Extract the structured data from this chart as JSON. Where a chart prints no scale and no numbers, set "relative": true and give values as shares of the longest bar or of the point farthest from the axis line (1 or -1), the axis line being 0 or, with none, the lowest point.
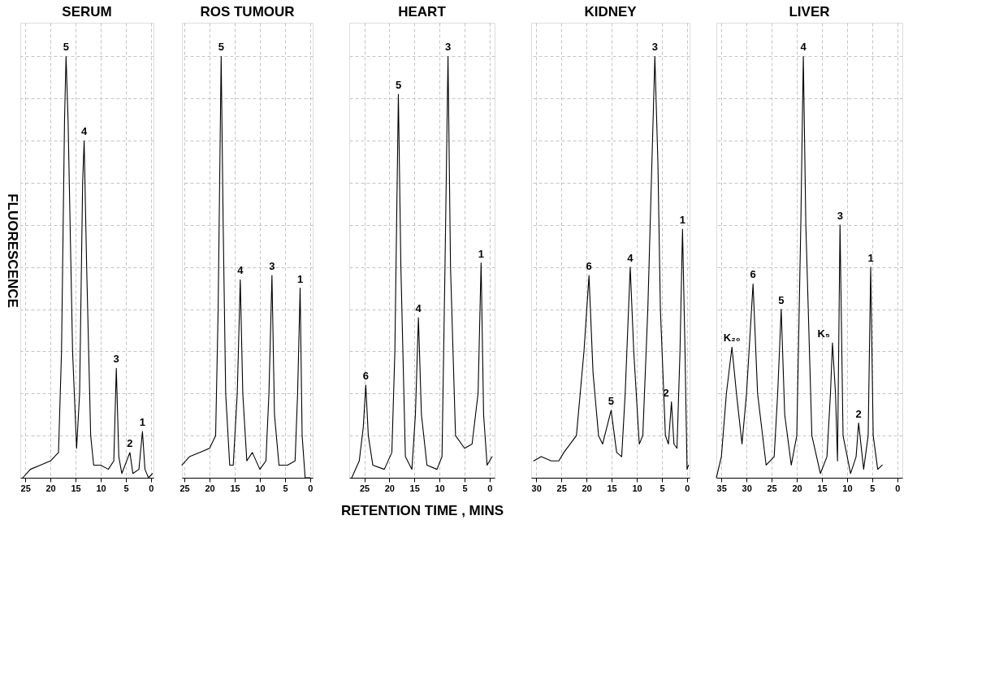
{
  "chart_data": [
    {
      "type": "line",
      "title": "SERUM",
      "ylabel": "FLUORESCENCE",
      "relative": true,
      "grid": true,
      "xlim": [
        26,
        -0.5
      ],
      "xticks": [
        25,
        20,
        15,
        10,
        5,
        0
      ],
      "series": [
        {
          "color": "#000000",
          "x": [
            25.5,
            24,
            22,
            20,
            18.4,
            17.8,
            17.2,
            16.9,
            16.5,
            15.6,
            14.8,
            14.2,
            13.6,
            13.3,
            12.8,
            12.0,
            11.4,
            10,
            8.5,
            7.4,
            6.9,
            6.4,
            5.8,
            4.2,
            3.6,
            2.4,
            1.7,
            1.2,
            0.5,
            -0.3
          ],
          "values": [
            0.0,
            0.02,
            0.03,
            0.04,
            0.06,
            0.3,
            0.85,
            1.0,
            0.85,
            0.3,
            0.07,
            0.2,
            0.7,
            0.8,
            0.5,
            0.1,
            0.03,
            0.03,
            0.02,
            0.04,
            0.26,
            0.05,
            0.01,
            0.06,
            0.01,
            0.02,
            0.11,
            0.02,
            0.0,
            0.01
          ]
        }
      ],
      "annotations": [
        {
          "text": "5",
          "x": 16.9,
          "y": 1.0
        },
        {
          "text": "4",
          "x": 13.3,
          "y": 0.8
        },
        {
          "text": "3",
          "x": 6.9,
          "y": 0.26
        },
        {
          "text": "2",
          "x": 4.2,
          "y": 0.06
        },
        {
          "text": "1",
          "x": 1.7,
          "y": 0.11
        }
      ]
    },
    {
      "type": "line",
      "title": "ROS TUMOUR",
      "relative": true,
      "grid": true,
      "xlim": [
        25.5,
        -0.5
      ],
      "xticks": [
        25,
        20,
        15,
        10,
        5,
        0
      ],
      "series": [
        {
          "color": "#000000",
          "x": [
            25.5,
            24,
            22,
            20,
            18.8,
            18.3,
            17.7,
            17.3,
            16.8,
            16,
            15.3,
            14.5,
            13.9,
            13.4,
            12.6,
            11.5,
            10,
            8.8,
            8.2,
            7.6,
            7.1,
            6.2,
            4.5,
            3,
            2.5,
            2.0,
            1.6,
            1.0,
            0
          ],
          "values": [
            0.03,
            0.05,
            0.06,
            0.07,
            0.1,
            0.4,
            1.0,
            0.6,
            0.2,
            0.03,
            0.03,
            0.2,
            0.47,
            0.2,
            0.04,
            0.06,
            0.02,
            0.04,
            0.2,
            0.48,
            0.15,
            0.03,
            0.03,
            0.04,
            0.2,
            0.45,
            0.1,
            0.0,
            0.0
          ]
        }
      ],
      "annotations": [
        {
          "text": "5",
          "x": 17.7,
          "y": 1.0
        },
        {
          "text": "4",
          "x": 13.9,
          "y": 0.47
        },
        {
          "text": "3",
          "x": 7.6,
          "y": 0.48
        },
        {
          "text": "1",
          "x": 2.0,
          "y": 0.45
        }
      ]
    },
    {
      "type": "line",
      "title": "HEART",
      "xlabel": "RETENTION  TIME , MINS",
      "relative": true,
      "grid": true,
      "xlim": [
        28,
        -1
      ],
      "xticks": [
        25,
        20,
        15,
        10,
        5,
        0
      ],
      "series": [
        {
          "color": "#000000",
          "x": [
            27.5,
            26,
            25.2,
            24.7,
            24.2,
            23.3,
            21,
            19.5,
            18.9,
            18.2,
            17.7,
            16.8,
            15.5,
            14.8,
            14.2,
            13.6,
            12.5,
            10.5,
            9.5,
            8.9,
            8.3,
            7.8,
            6.8,
            5,
            3.5,
            2.3,
            1.7,
            1.2,
            0.5,
            -0.5
          ],
          "values": [
            0.0,
            0.04,
            0.12,
            0.22,
            0.1,
            0.03,
            0.02,
            0.06,
            0.3,
            0.91,
            0.5,
            0.05,
            0.02,
            0.15,
            0.38,
            0.15,
            0.03,
            0.02,
            0.05,
            0.5,
            1.0,
            0.5,
            0.1,
            0.07,
            0.08,
            0.2,
            0.51,
            0.15,
            0.03,
            0.05
          ]
        }
      ],
      "annotations": [
        {
          "text": "6",
          "x": 24.7,
          "y": 0.22
        },
        {
          "text": "5",
          "x": 18.2,
          "y": 0.91
        },
        {
          "text": "4",
          "x": 14.2,
          "y": 0.38
        },
        {
          "text": "3",
          "x": 8.3,
          "y": 1.0
        },
        {
          "text": "1",
          "x": 1.7,
          "y": 0.51
        }
      ]
    },
    {
      "type": "line",
      "title": "KIDNEY",
      "relative": true,
      "grid": true,
      "xlim": [
        31,
        -0.5
      ],
      "xticks": [
        30,
        25,
        20,
        15,
        10,
        5,
        0
      ],
      "series": [
        {
          "color": "#000000",
          "x": [
            30.5,
            29,
            27,
            25.5,
            24.5,
            22,
            20.5,
            19.5,
            18.7,
            17.6,
            16.8,
            15.1,
            14,
            13,
            12.3,
            11.3,
            10.6,
            9.5,
            8.8,
            7.8,
            6.4,
            5.8,
            5.3,
            4.3,
            3.7,
            3.1,
            2.6,
            2,
            1.4,
            0.9,
            0.4,
            0,
            -0.3
          ],
          "values": [
            0.04,
            0.05,
            0.04,
            0.04,
            0.06,
            0.1,
            0.3,
            0.48,
            0.25,
            0.1,
            0.08,
            0.16,
            0.06,
            0.05,
            0.2,
            0.5,
            0.3,
            0.08,
            0.1,
            0.4,
            1.0,
            0.75,
            0.4,
            0.1,
            0.08,
            0.18,
            0.08,
            0.07,
            0.3,
            0.59,
            0.3,
            0.02,
            0.03
          ]
        }
      ],
      "annotations": [
        {
          "text": "6",
          "x": 19.5,
          "y": 0.48
        },
        {
          "text": "5",
          "x": 15.1,
          "y": 0.16
        },
        {
          "text": "4",
          "x": 11.3,
          "y": 0.5
        },
        {
          "text": "3",
          "x": 6.4,
          "y": 1.0
        },
        {
          "text": "2",
          "x": 3.1,
          "y": 0.18
        },
        {
          "text": "1",
          "x": 0.9,
          "y": 0.59
        }
      ]
    },
    {
      "type": "line",
      "title": "LIVER",
      "relative": true,
      "grid": true,
      "xlim": [
        36,
        -1
      ],
      "xticks": [
        35,
        30,
        25,
        20,
        15,
        10,
        5,
        0
      ],
      "series": [
        {
          "color": "#000000",
          "x": [
            36,
            35,
            34,
            32.9,
            32,
            30.9,
            30,
            28.7,
            27.8,
            26.1,
            24.5,
            23.8,
            23.1,
            22.4,
            21.1,
            20,
            19.2,
            18.7,
            18.2,
            17,
            15.3,
            14,
            13.3,
            12.9,
            12.3,
            11.9,
            11.4,
            10.8,
            9.3,
            8.2,
            7.7,
            6.7,
            5.8,
            5.3,
            4.8,
            3.9,
            3.0
          ],
          "values": [
            0.0,
            0.05,
            0.2,
            0.31,
            0.2,
            0.08,
            0.2,
            0.46,
            0.2,
            0.03,
            0.05,
            0.2,
            0.4,
            0.15,
            0.03,
            0.1,
            0.6,
            1.0,
            0.6,
            0.1,
            0.01,
            0.05,
            0.2,
            0.32,
            0.2,
            0.04,
            0.6,
            0.1,
            0.01,
            0.05,
            0.13,
            0.02,
            0.1,
            0.5,
            0.1,
            0.02,
            0.03
          ]
        }
      ],
      "annotations": [
        {
          "text": "K₂₀",
          "x": 32.9,
          "y": 0.31
        },
        {
          "text": "6",
          "x": 28.7,
          "y": 0.46
        },
        {
          "text": "5",
          "x": 23.1,
          "y": 0.4
        },
        {
          "text": "4",
          "x": 18.7,
          "y": 1.0
        },
        {
          "text": "K₅",
          "x": 12.9,
          "y": 0.32
        },
        {
          "text": "3",
          "x": 11.4,
          "y": 0.6
        },
        {
          "text": "2",
          "x": 7.7,
          "y": 0.13
        },
        {
          "text": "1",
          "x": 5.3,
          "y": 0.5
        }
      ]
    }
  ]
}
